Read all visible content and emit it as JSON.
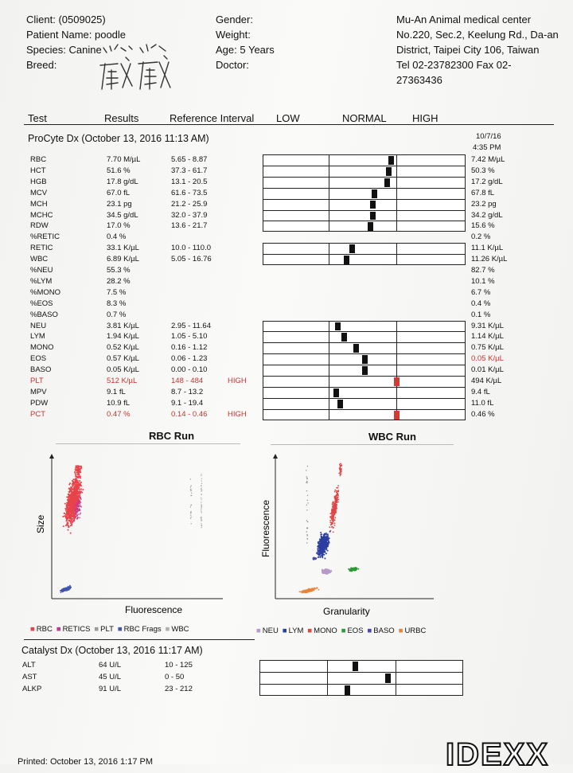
{
  "header": {
    "client": "Client: (0509025)",
    "patient": "Patient Name: poodle",
    "species": "Species: Canine",
    "breed": "Breed:",
    "gender": "Gender:",
    "weight": "Weight:",
    "age": "Age: 5 Years",
    "doctor": "Doctor:",
    "clinic": [
      "Mu-An Animal medical center",
      "No.220, Sec.2, Keelung Rd., Da-an",
      "District, Taipei City 106, Taiwan",
      "Tel 02-23782300  Fax 02-",
      "27363436"
    ]
  },
  "columns": {
    "test": "Test",
    "results": "Results",
    "ref": "Reference Interval",
    "low": "LOW",
    "normal": "NORMAL",
    "high": "HIGH"
  },
  "procyte": {
    "title": "ProCyte Dx (October 13, 2016 11:13 AM)",
    "prev_date": "10/7/16",
    "prev_time": "4:35 PM",
    "rows": [
      {
        "test": "RBC",
        "result": "7.70 M/µL",
        "ref": "5.65 - 8.87",
        "flag": "",
        "prev": "7.42 M/µL",
        "marker": 0.63
      },
      {
        "test": "HCT",
        "result": "51.6 %",
        "ref": "37.3 - 61.7",
        "flag": "",
        "prev": "50.3 %",
        "marker": 0.62
      },
      {
        "test": "HGB",
        "result": "17.8 g/dL",
        "ref": "13.1 - 20.5",
        "flag": "",
        "prev": "17.2 g/dL",
        "marker": 0.61
      },
      {
        "test": "MCV",
        "result": "67.0 fL",
        "ref": "61.6 - 73.5",
        "flag": "",
        "prev": "67.8 fL",
        "marker": 0.55
      },
      {
        "test": "MCH",
        "result": "23.1 pg",
        "ref": "21.2 - 25.9",
        "flag": "",
        "prev": "23.2 pg",
        "marker": 0.54
      },
      {
        "test": "MCHC",
        "result": "34.5 g/dL",
        "ref": "32.0 - 37.9",
        "flag": "",
        "prev": "34.2 g/dL",
        "marker": 0.54
      },
      {
        "test": "RDW",
        "result": "17.0 %",
        "ref": "13.6 - 21.7",
        "flag": "",
        "prev": "15.6 %",
        "marker": 0.53
      },
      {
        "test": "%RETIC",
        "result": "0.4 %",
        "ref": "",
        "flag": "",
        "prev": "0.2 %",
        "marker": null
      },
      {
        "test": "RETIC",
        "result": "33.1 K/µL",
        "ref": "10.0 - 110.0",
        "flag": "",
        "prev": "11.1 K/µL",
        "marker": 0.44
      },
      {
        "test": "WBC",
        "result": "6.89 K/µL",
        "ref": "5.05 - 16.76",
        "flag": "",
        "prev": "11.26 K/µL",
        "marker": 0.41
      },
      {
        "test": "%NEU",
        "result": "55.3 %",
        "ref": "",
        "flag": "",
        "prev": "82.7 %",
        "marker": null
      },
      {
        "test": "%LYM",
        "result": "28.2 %",
        "ref": "",
        "flag": "",
        "prev": "10.1 %",
        "marker": null
      },
      {
        "test": "%MONO",
        "result": "7.5 %",
        "ref": "",
        "flag": "",
        "prev": "6.7 %",
        "marker": null
      },
      {
        "test": "%EOS",
        "result": "8.3 %",
        "ref": "",
        "flag": "",
        "prev": "0.4 %",
        "marker": null
      },
      {
        "test": "%BASO",
        "result": "0.7 %",
        "ref": "",
        "flag": "",
        "prev": "0.1 %",
        "marker": null
      },
      {
        "test": "NEU",
        "result": "3.81 K/µL",
        "ref": "2.95 - 11.64",
        "flag": "",
        "prev": "9.31 K/µL",
        "marker": 0.37
      },
      {
        "test": "LYM",
        "result": "1.94 K/µL",
        "ref": "1.05 - 5.10",
        "flag": "",
        "prev": "1.14 K/µL",
        "marker": 0.4
      },
      {
        "test": "MONO",
        "result": "0.52 K/µL",
        "ref": "0.16 - 1.12",
        "flag": "",
        "prev": "0.75 K/µL",
        "marker": 0.46
      },
      {
        "test": "EOS",
        "result": "0.57 K/µL",
        "ref": "0.06 - 1.23",
        "flag": "",
        "prev": "0.05 K/µL",
        "prev_red": true,
        "marker": 0.5
      },
      {
        "test": "BASO",
        "result": "0.05 K/µL",
        "ref": "0.00 - 0.10",
        "flag": "",
        "prev": "0.01 K/µL",
        "marker": 0.5
      },
      {
        "test": "PLT",
        "result": "512 K/µL",
        "ref": "148 - 484",
        "flag": "HIGH",
        "red": true,
        "prev": "494 K/µL",
        "marker": 0.66
      },
      {
        "test": "MPV",
        "result": "9.1 fL",
        "ref": "8.7 - 13.2",
        "flag": "",
        "prev": "9.4 fL",
        "marker": 0.36
      },
      {
        "test": "PDW",
        "result": "10.9 fL",
        "ref": "9.1 - 19.4",
        "flag": "",
        "prev": "11.0 fL",
        "marker": 0.38
      },
      {
        "test": "PCT",
        "result": "0.47 %",
        "ref": "0.14 - 0.46",
        "flag": "HIGH",
        "red": true,
        "prev": "0.46 %",
        "marker": 0.66
      }
    ]
  },
  "rbc_run": {
    "title": "RBC Run",
    "xlabel": "Fluorescence",
    "ylabel": "Size",
    "legend": [
      {
        "label": "RBC",
        "color": "#e8434a"
      },
      {
        "label": "RETICS",
        "color": "#c2369a"
      },
      {
        "label": "PLT",
        "color": "#9a9a9a"
      },
      {
        "label": "RBC Frags",
        "color": "#3f55b0"
      },
      {
        "label": "WBC",
        "color": "#b0b0b0"
      }
    ]
  },
  "wbc_run": {
    "title": "WBC Run",
    "xlabel": "Granularity",
    "ylabel": "Fluorescence",
    "legend": [
      {
        "label": "NEU",
        "color": "#b89ac8"
      },
      {
        "label": "LYM",
        "color": "#2c3fa0"
      },
      {
        "label": "MONO",
        "color": "#e04545"
      },
      {
        "label": "EOS",
        "color": "#2e9a3a"
      },
      {
        "label": "BASO",
        "color": "#4a4aa8"
      },
      {
        "label": "URBC",
        "color": "#e8843a"
      }
    ]
  },
  "catalyst": {
    "title": "Catalyst Dx (October 13, 2016 11:17 AM)",
    "rows": [
      {
        "test": "ALT",
        "result": "64 U/L",
        "ref": "10 - 125",
        "marker": 0.47
      },
      {
        "test": "AST",
        "result": "45 U/L",
        "ref": "0 - 50",
        "marker": 0.63
      },
      {
        "test": "ALKP",
        "result": "91 U/L",
        "ref": "23 - 212",
        "marker": 0.43
      }
    ]
  },
  "footer": {
    "printed": "Printed: October 13, 2016 1:17 PM",
    "logo": "IDEXX"
  }
}
